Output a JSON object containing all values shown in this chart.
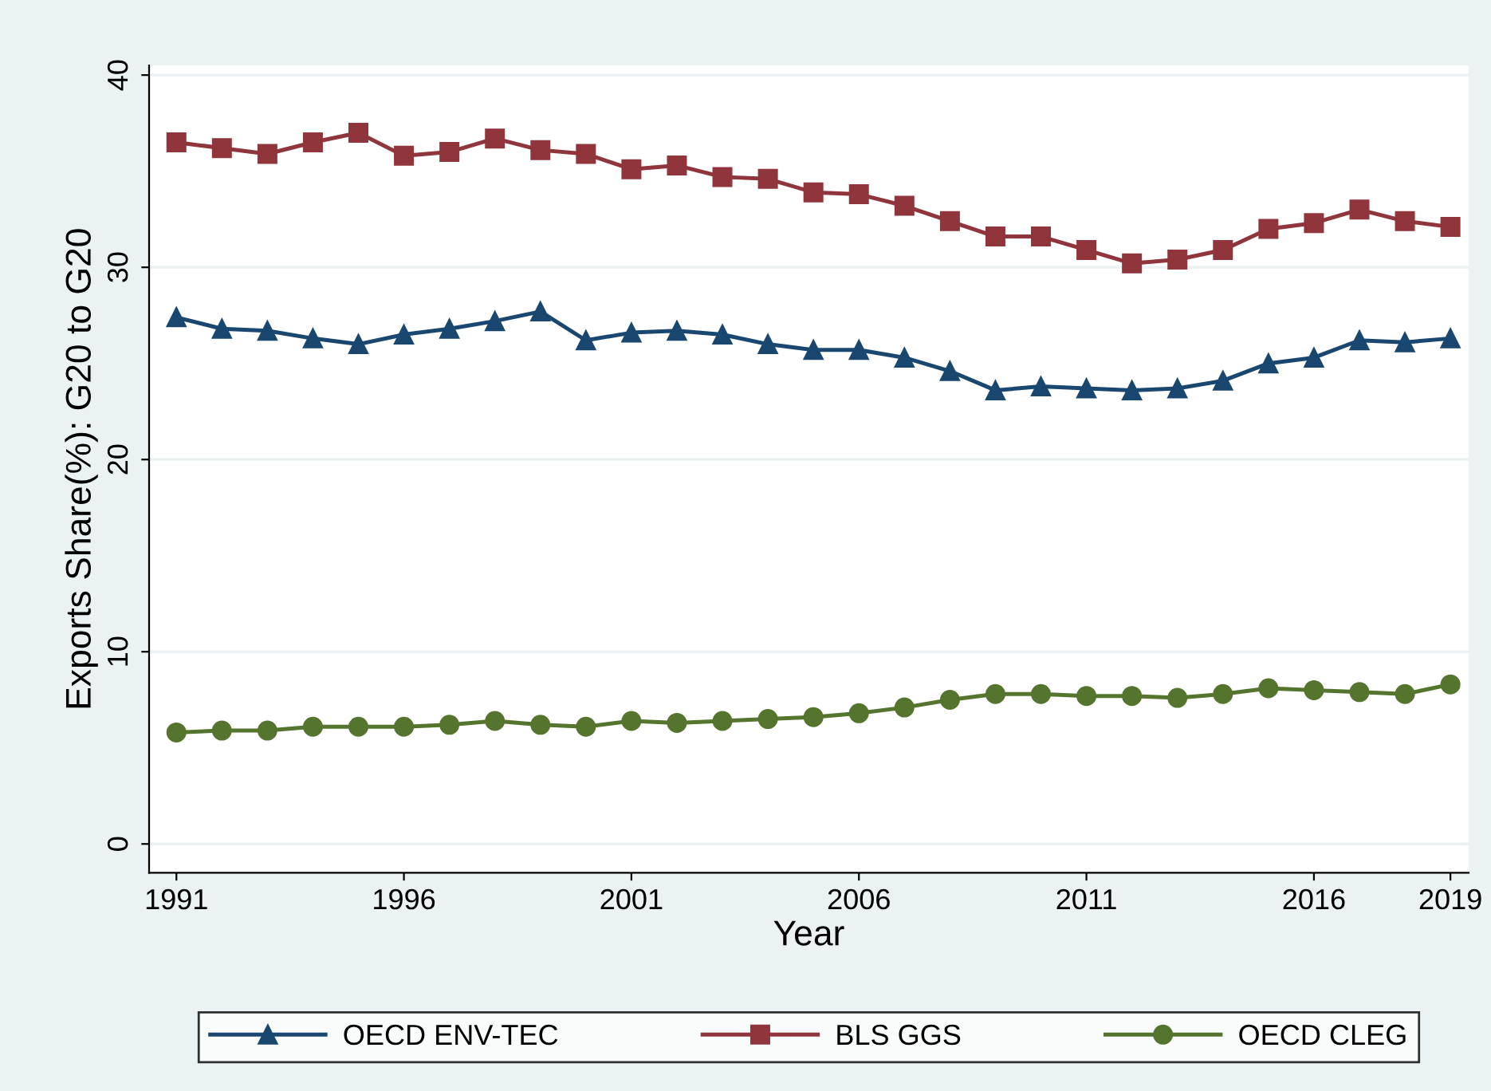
{
  "chart_data": {
    "type": "line",
    "xlabel": "Year",
    "ylabel": "Exports Share(%): G20 to G20",
    "x": [
      1991,
      1992,
      1993,
      1994,
      1995,
      1996,
      1997,
      1998,
      1999,
      2000,
      2001,
      2002,
      2003,
      2004,
      2005,
      2006,
      2007,
      2008,
      2009,
      2010,
      2011,
      2012,
      2013,
      2014,
      2015,
      2016,
      2017,
      2018,
      2019
    ],
    "series": [
      {
        "name": "OECD ENV-TEC",
        "color": "#1a476f",
        "marker": "triangle",
        "values": [
          27.4,
          26.8,
          26.7,
          26.3,
          26.0,
          26.5,
          26.8,
          27.2,
          27.7,
          26.2,
          26.6,
          26.7,
          26.5,
          26.0,
          25.7,
          25.7,
          25.3,
          24.6,
          23.6,
          23.8,
          23.7,
          23.6,
          23.7,
          24.1,
          25.0,
          25.3,
          26.2,
          26.1,
          26.3
        ]
      },
      {
        "name": "BLS GGS",
        "color": "#90353b",
        "marker": "square",
        "values": [
          36.5,
          36.2,
          35.9,
          36.5,
          37.0,
          35.8,
          36.0,
          36.7,
          36.1,
          35.9,
          35.1,
          35.3,
          34.7,
          34.6,
          33.9,
          33.8,
          33.2,
          32.4,
          31.6,
          31.6,
          30.9,
          30.2,
          30.4,
          30.9,
          32.0,
          32.3,
          33.0,
          32.4,
          32.1
        ]
      },
      {
        "name": "OECD CLEG",
        "color": "#55752f",
        "marker": "circle",
        "values": [
          5.8,
          5.9,
          5.9,
          6.1,
          6.1,
          6.1,
          6.2,
          6.4,
          6.2,
          6.1,
          6.4,
          6.3,
          6.4,
          6.5,
          6.6,
          6.8,
          7.1,
          7.5,
          7.8,
          7.8,
          7.7,
          7.7,
          7.6,
          7.8,
          8.1,
          8.0,
          7.9,
          7.8,
          8.3
        ]
      }
    ],
    "xlim": [
      1990.4,
      2019.4
    ],
    "xticks": [
      1991,
      1996,
      2001,
      2006,
      2011,
      2016,
      2019
    ],
    "ylim": [
      -1.5,
      40.5
    ],
    "yticks": [
      0,
      10,
      20,
      30,
      40
    ],
    "grid": "y",
    "legend": "bottom"
  }
}
